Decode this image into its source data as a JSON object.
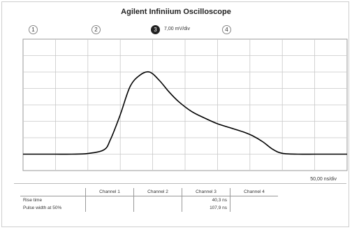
{
  "title": "Agilent Infiniium Oscilloscope",
  "channels": [
    {
      "label": "1",
      "active": false
    },
    {
      "label": "2",
      "active": false
    },
    {
      "label": "3",
      "active": true
    },
    {
      "label": "4",
      "active": false
    }
  ],
  "scale_readout": "7,00 mV/div",
  "timebase": "50,00 ns/div",
  "measurements": {
    "headers": [
      "",
      "Channel 1",
      "Channel 2",
      "Channel 3",
      "Channel 4"
    ],
    "rows": [
      {
        "label": "Rise time",
        "values": [
          "",
          "",
          "40,3 ns",
          ""
        ]
      },
      {
        "label": "Pulse width at 50%",
        "values": [
          "",
          "",
          "107,9 ns",
          ""
        ]
      }
    ]
  },
  "chart_data": {
    "type": "line",
    "title": "",
    "xlabel": "",
    "ylabel": "",
    "grid": true,
    "x_divisions": 10,
    "y_divisions": 8,
    "x_units": "div",
    "y_units": "div",
    "series": [
      {
        "color": "#000000",
        "x": [
          0,
          0.5,
          1.0,
          1.5,
          2.0,
          2.5,
          2.7,
          3.0,
          3.3,
          3.6,
          3.9,
          4.2,
          4.5,
          4.8,
          5.2,
          5.6,
          6.0,
          6.4,
          6.8,
          7.1,
          7.4,
          7.7,
          8.0,
          8.5,
          9.0,
          9.5,
          10.0
        ],
        "y": [
          0.0,
          0.0,
          0.0,
          0.0,
          0.04,
          0.27,
          0.9,
          2.4,
          4.1,
          4.8,
          5.0,
          4.5,
          3.8,
          3.2,
          2.6,
          2.2,
          1.85,
          1.6,
          1.35,
          1.1,
          0.75,
          0.3,
          0.05,
          0.0,
          0.0,
          0.0,
          0.0
        ]
      }
    ]
  }
}
